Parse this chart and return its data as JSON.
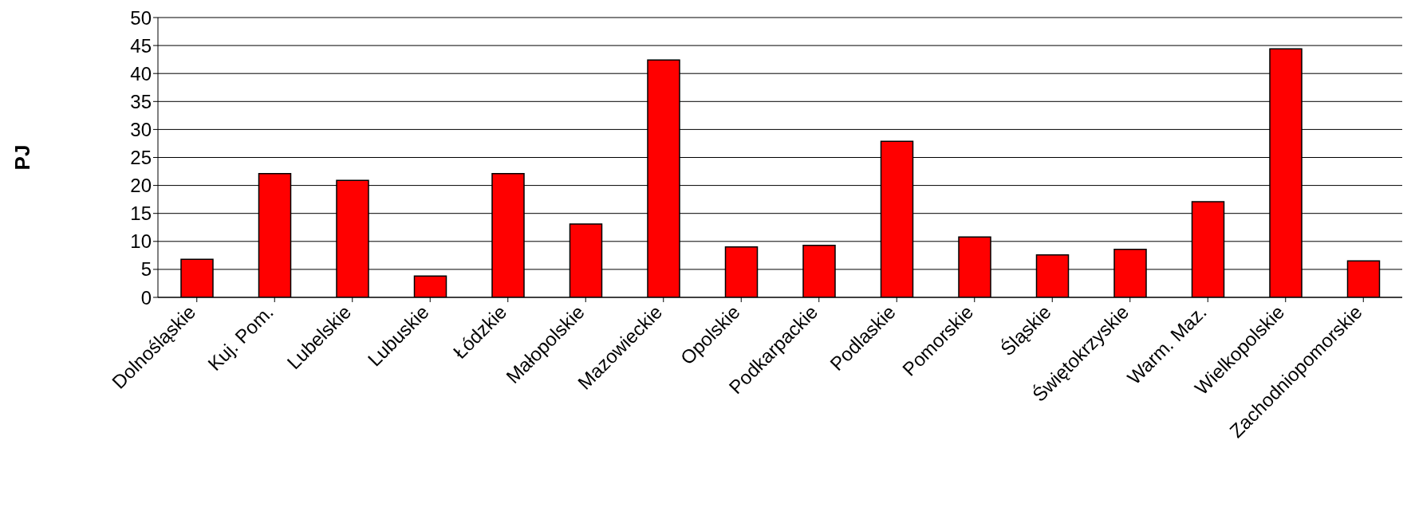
{
  "chart_data": {
    "type": "bar",
    "ylabel": "PJ",
    "categories": [
      "Dolnośląskie",
      "Kuj. Pom.",
      "Lubelskie",
      "Lubuskie",
      "Łódzkie",
      "Małopolskie",
      "Mazowieckie",
      "Opolskie",
      "Podkarpackie",
      "Podlaskie",
      "Pomorskie",
      "Śląskie",
      "Świętokrzyskie",
      "Warm. Maz.",
      "Wielkopolskie",
      "Zachodniopomorskie"
    ],
    "values": [
      6.8,
      22.1,
      20.9,
      3.8,
      22.1,
      13.1,
      42.4,
      9.0,
      9.3,
      27.9,
      10.8,
      7.6,
      8.6,
      17.1,
      44.4,
      6.5
    ],
    "color": "#ff0000",
    "ylim": [
      0,
      50
    ],
    "yticks": [
      0,
      5,
      10,
      15,
      20,
      25,
      30,
      35,
      40,
      45,
      50
    ],
    "grid": "y",
    "legend": false
  }
}
